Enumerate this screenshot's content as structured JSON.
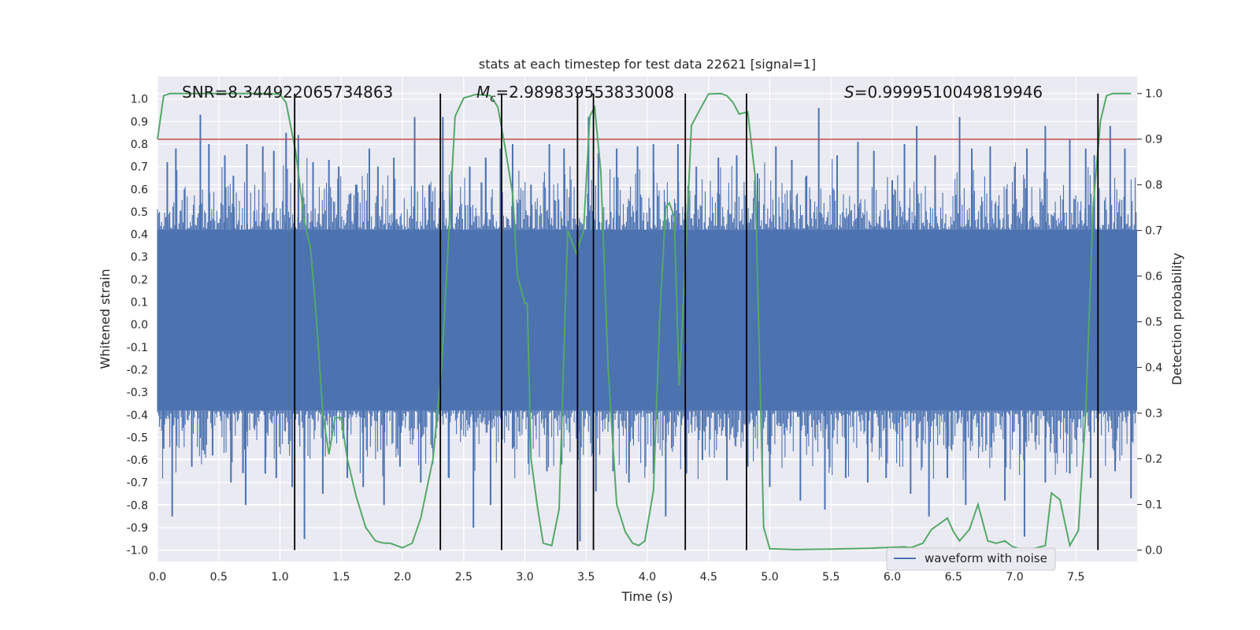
{
  "chart_data": {
    "type": "line",
    "title": "stats at each timestep for test data 22621 [signal=1]",
    "xlabel": "Time (s)",
    "ylabel": "Whitened strain",
    "y2label": "Detection probability",
    "xlim": [
      0.0,
      8.0
    ],
    "ylim": [
      -1.05,
      1.1
    ],
    "y2lim": [
      -0.025,
      1.0375
    ],
    "xticks": [
      "0.0",
      "0.5",
      "1.0",
      "1.5",
      "2.0",
      "2.5",
      "3.0",
      "3.5",
      "4.0",
      "4.5",
      "5.0",
      "5.5",
      "6.0",
      "6.5",
      "7.0",
      "7.5"
    ],
    "yticks": [
      "1.0",
      "0.9",
      "0.8",
      "0.7",
      "0.6",
      "0.5",
      "0.4",
      "0.3",
      "0.2",
      "0.1",
      "0.0",
      "-0.1",
      "-0.2",
      "-0.3",
      "-0.4",
      "-0.5",
      "-0.6",
      "-0.7",
      "-0.8",
      "-0.9",
      "-1.0"
    ],
    "y2ticks": [
      "1.0",
      "0.9",
      "0.8",
      "0.7",
      "0.6",
      "0.5",
      "0.4",
      "0.3",
      "0.2",
      "0.1",
      "0.0"
    ],
    "annotations": {
      "snr": "SNR=8.344922065734863",
      "mc_symbol": "M",
      "mc_sub": "c",
      "mc_value": "=2.989839553833008",
      "s_symbol": "S",
      "s_value": "=0.9999510049819946"
    },
    "legend": {
      "label": "waveform with noise",
      "location": "lower-right"
    },
    "threshold": {
      "axis": "right",
      "value": 0.9,
      "color": "#c44e52"
    },
    "waveform": {
      "name": "waveform with noise",
      "color": "#4c72b0",
      "band_low": -0.38,
      "band_high": 0.42,
      "peaks_up": [
        [
          0.08,
          0.72
        ],
        [
          0.15,
          0.78
        ],
        [
          0.22,
          0.6
        ],
        [
          0.35,
          0.93
        ],
        [
          0.42,
          0.8
        ],
        [
          0.55,
          0.75
        ],
        [
          0.62,
          0.66
        ],
        [
          0.73,
          0.8
        ],
        [
          0.86,
          0.79
        ],
        [
          0.95,
          0.77
        ],
        [
          1.05,
          0.85
        ],
        [
          1.15,
          0.84
        ],
        [
          1.27,
          0.72
        ],
        [
          1.4,
          0.73
        ],
        [
          1.48,
          0.7
        ],
        [
          1.62,
          0.62
        ],
        [
          1.73,
          0.78
        ],
        [
          1.8,
          0.7
        ],
        [
          1.93,
          0.74
        ],
        [
          2.1,
          0.92
        ],
        [
          2.22,
          0.62
        ],
        [
          2.33,
          0.92
        ],
        [
          2.4,
          0.68
        ],
        [
          2.55,
          0.7
        ],
        [
          2.68,
          0.74
        ],
        [
          2.8,
          0.78
        ],
        [
          2.9,
          0.8
        ],
        [
          3.05,
          0.62
        ],
        [
          3.2,
          0.8
        ],
        [
          3.32,
          0.78
        ],
        [
          3.52,
          0.92
        ],
        [
          3.6,
          0.76
        ],
        [
          3.75,
          0.78
        ],
        [
          3.92,
          0.79
        ],
        [
          4.05,
          0.8
        ],
        [
          4.25,
          0.8
        ],
        [
          4.4,
          0.7
        ],
        [
          4.58,
          0.74
        ],
        [
          4.73,
          0.75
        ],
        [
          4.9,
          0.67
        ],
        [
          5.05,
          0.79
        ],
        [
          5.18,
          0.73
        ],
        [
          5.3,
          0.66
        ],
        [
          5.4,
          0.96
        ],
        [
          5.55,
          0.75
        ],
        [
          5.72,
          0.81
        ],
        [
          5.85,
          0.77
        ],
        [
          6.0,
          0.64
        ],
        [
          6.1,
          0.8
        ],
        [
          6.2,
          0.88
        ],
        [
          6.35,
          0.75
        ],
        [
          6.55,
          0.92
        ],
        [
          6.65,
          0.78
        ],
        [
          6.8,
          0.79
        ],
        [
          7.0,
          0.7
        ],
        [
          7.1,
          0.78
        ],
        [
          7.25,
          0.88
        ],
        [
          7.45,
          0.82
        ],
        [
          7.58,
          0.78
        ],
        [
          7.65,
          0.75
        ],
        [
          7.78,
          0.88
        ],
        [
          7.9,
          0.78
        ]
      ],
      "peaks_down": [
        [
          0.05,
          -0.55
        ],
        [
          0.12,
          -0.85
        ],
        [
          0.28,
          -0.63
        ],
        [
          0.45,
          -0.58
        ],
        [
          0.6,
          -0.7
        ],
        [
          0.72,
          -0.8
        ],
        [
          0.88,
          -0.66
        ],
        [
          0.97,
          -0.68
        ],
        [
          1.1,
          -0.72
        ],
        [
          1.2,
          -0.95
        ],
        [
          1.35,
          -0.75
        ],
        [
          1.55,
          -0.68
        ],
        [
          1.68,
          -0.72
        ],
        [
          1.85,
          -0.8
        ],
        [
          1.98,
          -0.63
        ],
        [
          2.15,
          -0.7
        ],
        [
          2.38,
          -0.68
        ],
        [
          2.58,
          -0.9
        ],
        [
          2.72,
          -0.8
        ],
        [
          2.9,
          -0.55
        ],
        [
          3.18,
          -0.65
        ],
        [
          3.3,
          -0.62
        ],
        [
          3.45,
          -0.96
        ],
        [
          3.58,
          -0.74
        ],
        [
          3.72,
          -0.65
        ],
        [
          3.85,
          -0.7
        ],
        [
          4.05,
          -0.66
        ],
        [
          4.15,
          -0.85
        ],
        [
          4.32,
          -0.66
        ],
        [
          4.45,
          -0.6
        ],
        [
          4.65,
          -0.69
        ],
        [
          4.82,
          -0.63
        ],
        [
          5.0,
          -0.72
        ],
        [
          5.25,
          -0.78
        ],
        [
          5.45,
          -0.82
        ],
        [
          5.62,
          -0.68
        ],
        [
          5.8,
          -0.7
        ],
        [
          5.95,
          -0.68
        ],
        [
          6.15,
          -0.75
        ],
        [
          6.3,
          -0.85
        ],
        [
          6.45,
          -0.68
        ],
        [
          6.6,
          -0.8
        ],
        [
          6.92,
          -0.78
        ],
        [
          7.08,
          -0.94
        ],
        [
          7.25,
          -0.7
        ],
        [
          7.45,
          -0.66
        ],
        [
          7.62,
          -0.68
        ],
        [
          7.82,
          -0.65
        ],
        [
          7.95,
          -0.77
        ]
      ]
    },
    "probability": {
      "color": "#55a868",
      "points": [
        [
          0.0,
          0.9
        ],
        [
          0.05,
          0.995
        ],
        [
          0.1,
          1.0
        ],
        [
          0.3,
          1.0
        ],
        [
          0.6,
          1.0
        ],
        [
          0.9,
          1.0
        ],
        [
          1.0,
          0.998
        ],
        [
          1.05,
          0.98
        ],
        [
          1.13,
          0.87
        ],
        [
          1.2,
          0.72
        ],
        [
          1.25,
          0.66
        ],
        [
          1.3,
          0.5
        ],
        [
          1.35,
          0.3
        ],
        [
          1.4,
          0.21
        ],
        [
          1.45,
          0.29
        ],
        [
          1.5,
          0.29
        ],
        [
          1.55,
          0.2
        ],
        [
          1.62,
          0.12
        ],
        [
          1.7,
          0.05
        ],
        [
          1.78,
          0.02
        ],
        [
          1.85,
          0.015
        ],
        [
          1.9,
          0.015
        ],
        [
          2.0,
          0.005
        ],
        [
          2.08,
          0.015
        ],
        [
          2.15,
          0.07
        ],
        [
          2.25,
          0.2
        ],
        [
          2.32,
          0.4
        ],
        [
          2.38,
          0.7
        ],
        [
          2.43,
          0.95
        ],
        [
          2.5,
          0.99
        ],
        [
          2.6,
          0.998
        ],
        [
          2.72,
          0.995
        ],
        [
          2.78,
          0.97
        ],
        [
          2.84,
          0.88
        ],
        [
          2.9,
          0.78
        ],
        [
          2.94,
          0.6
        ],
        [
          3.0,
          0.54
        ],
        [
          3.02,
          0.54
        ],
        [
          3.05,
          0.2
        ],
        [
          3.1,
          0.1
        ],
        [
          3.15,
          0.015
        ],
        [
          3.22,
          0.01
        ],
        [
          3.28,
          0.09
        ],
        [
          3.35,
          0.7
        ],
        [
          3.42,
          0.65
        ],
        [
          3.48,
          0.7
        ],
        [
          3.53,
          0.95
        ],
        [
          3.57,
          0.97
        ],
        [
          3.62,
          0.83
        ],
        [
          3.68,
          0.4
        ],
        [
          3.75,
          0.1
        ],
        [
          3.82,
          0.04
        ],
        [
          3.88,
          0.015
        ],
        [
          3.93,
          0.01
        ],
        [
          3.98,
          0.02
        ],
        [
          4.05,
          0.13
        ],
        [
          4.1,
          0.5
        ],
        [
          4.15,
          0.75
        ],
        [
          4.18,
          0.76
        ],
        [
          4.22,
          0.73
        ],
        [
          4.26,
          0.36
        ],
        [
          4.3,
          0.57
        ],
        [
          4.36,
          0.93
        ],
        [
          4.45,
          0.975
        ],
        [
          4.5,
          0.999
        ],
        [
          4.6,
          1.0
        ],
        [
          4.65,
          0.995
        ],
        [
          4.7,
          0.98
        ],
        [
          4.75,
          0.955
        ],
        [
          4.82,
          0.96
        ],
        [
          4.88,
          0.82
        ],
        [
          4.95,
          0.05
        ],
        [
          5.0,
          0.003
        ],
        [
          5.2,
          0.001
        ],
        [
          5.5,
          0.002
        ],
        [
          5.8,
          0.004
        ],
        [
          6.0,
          0.006
        ],
        [
          6.1,
          0.007
        ],
        [
          6.15,
          0.005
        ],
        [
          6.25,
          0.015
        ],
        [
          6.32,
          0.045
        ],
        [
          6.45,
          0.07
        ],
        [
          6.5,
          0.04
        ],
        [
          6.55,
          0.02
        ],
        [
          6.63,
          0.045
        ],
        [
          6.7,
          0.1
        ],
        [
          6.78,
          0.02
        ],
        [
          6.85,
          0.015
        ],
        [
          6.92,
          0.02
        ],
        [
          6.98,
          0.008
        ],
        [
          7.05,
          0.002
        ],
        [
          7.15,
          0.003
        ],
        [
          7.25,
          0.01
        ],
        [
          7.3,
          0.125
        ],
        [
          7.37,
          0.11
        ],
        [
          7.45,
          0.01
        ],
        [
          7.52,
          0.043
        ],
        [
          7.58,
          0.3
        ],
        [
          7.64,
          0.75
        ],
        [
          7.7,
          0.94
        ],
        [
          7.75,
          0.995
        ],
        [
          7.8,
          1.0
        ],
        [
          7.95,
          1.0
        ]
      ]
    },
    "event_lines": [
      1.12,
      2.31,
      2.81,
      3.43,
      3.56,
      4.31,
      4.81,
      7.68
    ]
  }
}
